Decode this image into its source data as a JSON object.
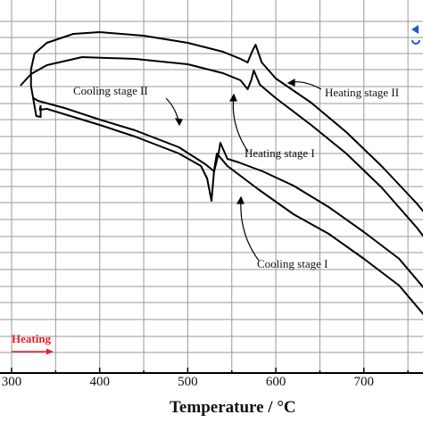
{
  "chart_data": {
    "type": "line",
    "xlabel": "Temperature / ",
    "xlabel_unit": "°C",
    "xlim": [
      290,
      770
    ],
    "x_ticks": [
      300,
      400,
      500,
      600,
      700
    ],
    "ylabel": "",
    "grid": true,
    "direction_label": "Heating",
    "series": [
      {
        "name": "Heating stage I",
        "points": [
          [
            310,
            96
          ],
          [
            322,
            83
          ],
          [
            340,
            73
          ],
          [
            380,
            64
          ],
          [
            440,
            66
          ],
          [
            500,
            72
          ],
          [
            540,
            82
          ],
          [
            560,
            90
          ],
          [
            568,
            100
          ],
          [
            572,
            90
          ],
          [
            575,
            79
          ],
          [
            582,
            95
          ],
          [
            600,
            110
          ],
          [
            640,
            140
          ],
          [
            680,
            172
          ],
          [
            720,
            210
          ],
          [
            760,
            255
          ],
          [
            770,
            268
          ]
        ]
      },
      {
        "name": "Heating stage II",
        "points": [
          [
            322,
            78
          ],
          [
            326,
            60
          ],
          [
            340,
            48
          ],
          [
            370,
            38
          ],
          [
            400,
            36
          ],
          [
            450,
            40
          ],
          [
            500,
            48
          ],
          [
            540,
            58
          ],
          [
            560,
            66
          ],
          [
            568,
            70
          ],
          [
            573,
            58
          ],
          [
            577,
            50
          ],
          [
            584,
            70
          ],
          [
            600,
            88
          ],
          [
            640,
            115
          ],
          [
            680,
            148
          ],
          [
            720,
            186
          ],
          [
            760,
            228
          ],
          [
            770,
            240
          ]
        ]
      },
      {
        "name": "Cooling stage I",
        "points": [
          [
            770,
            355
          ],
          [
            740,
            320
          ],
          [
            700,
            290
          ],
          [
            660,
            262
          ],
          [
            620,
            240
          ],
          [
            580,
            212
          ],
          [
            545,
            186
          ],
          [
            533,
            172
          ],
          [
            530,
            190
          ],
          [
            527,
            225
          ],
          [
            522,
            200
          ],
          [
            515,
            186
          ],
          [
            490,
            172
          ],
          [
            440,
            153
          ],
          [
            400,
            140
          ],
          [
            380,
            134
          ],
          [
            340,
            122
          ],
          [
            332,
            123
          ],
          [
            333,
            118
          ]
        ]
      },
      {
        "name": "Cooling stage II",
        "points": [
          [
            770,
            325
          ],
          [
            740,
            290
          ],
          [
            700,
            260
          ],
          [
            660,
            232
          ],
          [
            620,
            208
          ],
          [
            585,
            192
          ],
          [
            558,
            182
          ],
          [
            545,
            178
          ],
          [
            537,
            160
          ],
          [
            535,
            172
          ],
          [
            530,
            192
          ],
          [
            520,
            184
          ],
          [
            490,
            165
          ],
          [
            440,
            146
          ],
          [
            400,
            134
          ],
          [
            360,
            121
          ],
          [
            330,
            113
          ],
          [
            325,
            110
          ]
        ]
      }
    ],
    "annotations": [
      {
        "text": "Cooling stage II"
      },
      {
        "text": "Heating stage I"
      },
      {
        "text": "Heating stage II"
      },
      {
        "text": "Cooling stage I"
      }
    ]
  }
}
